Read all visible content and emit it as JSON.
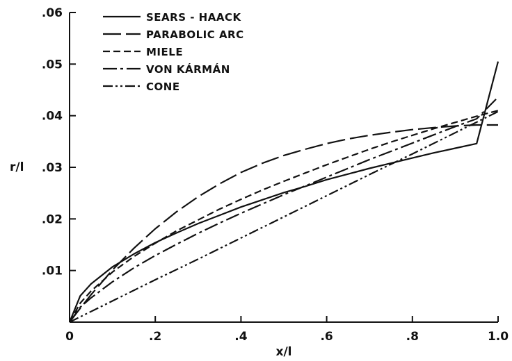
{
  "chart_data": {
    "type": "line",
    "title": "",
    "xlabel": "x/l",
    "ylabel": "r/l",
    "xlim": [
      0,
      1.0
    ],
    "ylim": [
      0,
      0.06
    ],
    "x_ticks": [
      {
        "value": 0,
        "label": "0"
      },
      {
        "value": 0.2,
        "label": ".2"
      },
      {
        "value": 0.4,
        "label": ".4"
      },
      {
        "value": 0.6,
        "label": ".6"
      },
      {
        "value": 0.8,
        "label": ".8"
      },
      {
        "value": 1.0,
        "label": "1.0"
      }
    ],
    "y_ticks": [
      {
        "value": 0.01,
        "label": ".01"
      },
      {
        "value": 0.02,
        "label": ".02"
      },
      {
        "value": 0.03,
        "label": ".03"
      },
      {
        "value": 0.04,
        "label": ".04"
      },
      {
        "value": 0.05,
        "label": ".05"
      },
      {
        "value": 0.06,
        "label": ".06"
      }
    ],
    "grid": false,
    "legend_position": "top-left",
    "series": [
      {
        "name": "SEARS - HAACK",
        "dash": "solid",
        "x": [
          0,
          0.025,
          0.05,
          0.1,
          0.15,
          0.2,
          0.25,
          0.3,
          0.35,
          0.4,
          0.45,
          0.5,
          0.55,
          0.6,
          0.65,
          0.7,
          0.75,
          0.8,
          0.85,
          0.9,
          0.95,
          1.0
        ],
        "y": [
          0,
          0.0051,
          0.0074,
          0.0107,
          0.0132,
          0.0154,
          0.0173,
          0.0191,
          0.0207,
          0.0223,
          0.0237,
          0.0251,
          0.0263,
          0.0276,
          0.0287,
          0.0298,
          0.0308,
          0.0318,
          0.0328,
          0.0337,
          0.0346,
          0.0505
        ]
      },
      {
        "name": "PARABOLIC ARC",
        "dash": "long-dash",
        "x": [
          0,
          0.025,
          0.05,
          0.1,
          0.15,
          0.2,
          0.25,
          0.3,
          0.35,
          0.4,
          0.45,
          0.5,
          0.55,
          0.6,
          0.65,
          0.7,
          0.75,
          0.8,
          0.85,
          0.9,
          0.95,
          1.0
        ],
        "y": [
          0,
          0.0027,
          0.0053,
          0.0101,
          0.0143,
          0.0181,
          0.0214,
          0.0243,
          0.0268,
          0.029,
          0.0308,
          0.0323,
          0.0335,
          0.0346,
          0.0355,
          0.0362,
          0.0368,
          0.0373,
          0.0377,
          0.038,
          0.0382,
          0.0382
        ]
      },
      {
        "name": "MIELE",
        "dash": "short-dash",
        "x": [
          0,
          0.025,
          0.05,
          0.1,
          0.15,
          0.2,
          0.25,
          0.3,
          0.35,
          0.4,
          0.45,
          0.5,
          0.55,
          0.6,
          0.65,
          0.7,
          0.75,
          0.8,
          0.85,
          0.9,
          0.95,
          1.0
        ],
        "y": [
          0,
          0.0037,
          0.006,
          0.0097,
          0.0127,
          0.0153,
          0.0177,
          0.0198,
          0.0219,
          0.0238,
          0.0256,
          0.0273,
          0.0289,
          0.0305,
          0.032,
          0.0335,
          0.0349,
          0.0362,
          0.0375,
          0.0387,
          0.0399,
          0.041
        ]
      },
      {
        "name": "VON KÁRMÁN",
        "dash": "dash-dot",
        "x": [
          0,
          0.025,
          0.05,
          0.1,
          0.15,
          0.2,
          0.25,
          0.3,
          0.35,
          0.4,
          0.45,
          0.5,
          0.55,
          0.6,
          0.65,
          0.7,
          0.75,
          0.8,
          0.85,
          0.9,
          0.95,
          1.0
        ],
        "y": [
          0,
          0.0029,
          0.0047,
          0.0078,
          0.0105,
          0.0129,
          0.0151,
          0.0172,
          0.0192,
          0.0211,
          0.0229,
          0.0247,
          0.0264,
          0.0281,
          0.0298,
          0.0315,
          0.0331,
          0.0347,
          0.0363,
          0.0379,
          0.0394,
          0.0436
        ]
      },
      {
        "name": "CONE",
        "dash": "dash-dot-dot",
        "x": [
          0,
          0.1,
          0.2,
          0.3,
          0.4,
          0.5,
          0.6,
          0.7,
          0.8,
          0.9,
          1.0
        ],
        "y": [
          0,
          0.0041,
          0.0082,
          0.0122,
          0.0163,
          0.0204,
          0.0245,
          0.0286,
          0.0326,
          0.0367,
          0.0408
        ]
      }
    ]
  }
}
